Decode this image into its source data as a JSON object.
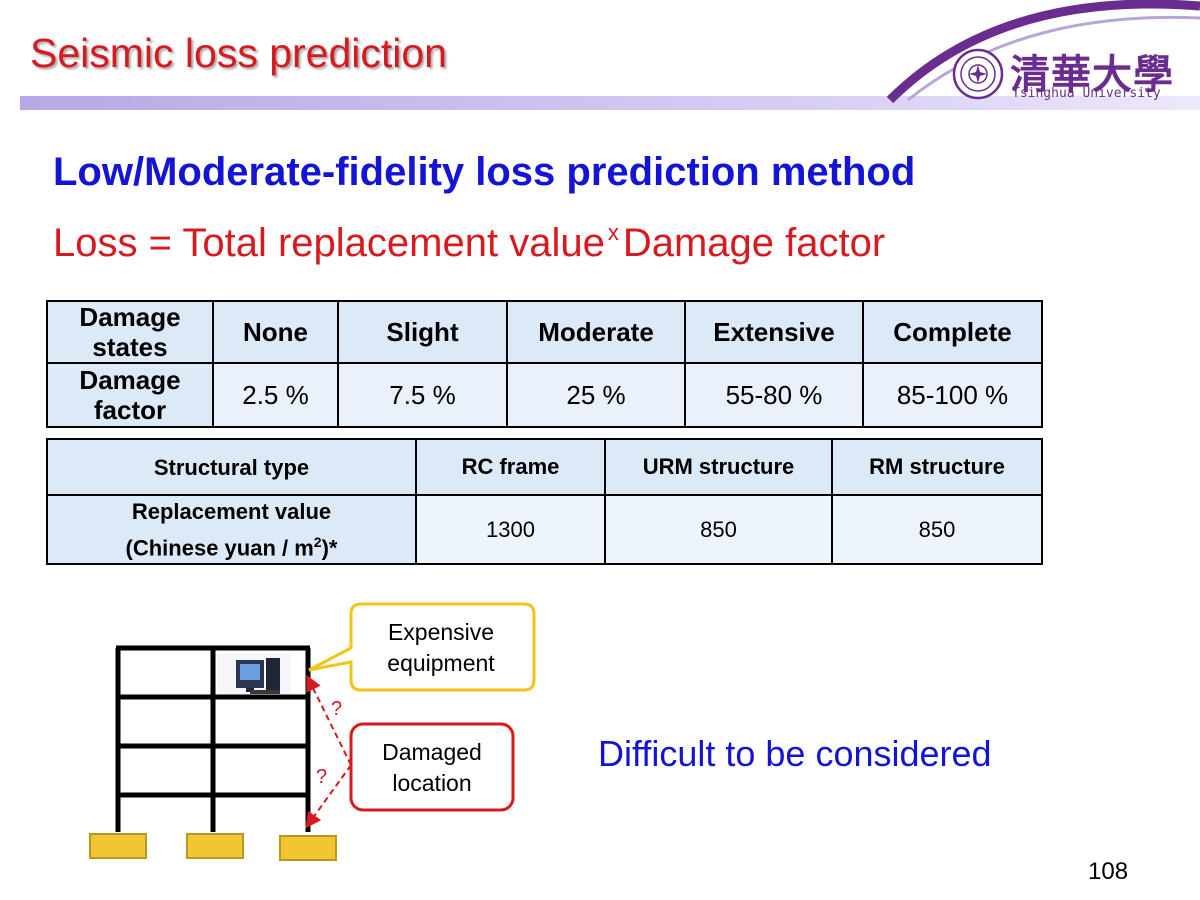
{
  "header": {
    "title": "Seismic loss prediction",
    "logo_chinese": "清華大學",
    "logo_english": "Tsinghua University"
  },
  "heading": "Low/Moderate-fidelity loss prediction method",
  "formula": {
    "left": "Loss = Total replacement value",
    "operator": "x",
    "right": "Damage factor"
  },
  "damage_table": {
    "row1_label": "Damage states",
    "row2_label": "Damage factor",
    "states": [
      "None",
      "Slight",
      "Moderate",
      "Extensive",
      "Complete"
    ],
    "factors": [
      "2.5 %",
      "7.5 %",
      "25 %",
      "55-80 %",
      "85-100 %"
    ]
  },
  "value_table": {
    "row1_label": "Structural type",
    "row2_label_line1": "Replacement value",
    "row2_label_line2_prefix": "(Chinese yuan / m",
    "row2_label_sup": "2",
    "row2_label_line2_suffix": ")*",
    "types": [
      "RC frame",
      "URM structure",
      "RM structure"
    ],
    "values": [
      "1300",
      "850",
      "850"
    ]
  },
  "diagram": {
    "callout_expensive": "Expensive\nequipment",
    "callout_damaged": "Damaged\nlocation",
    "question_mark": "?"
  },
  "conclusion": "Difficult to be considered",
  "page_number": "108",
  "colors": {
    "title_red": "#d71920",
    "heading_blue": "#1414d6",
    "accent_purple": "#6a2c8e",
    "table_fill": "#dce9f7",
    "callout_yellow": "#f0c419",
    "footing_yellow": "#f2c633"
  }
}
